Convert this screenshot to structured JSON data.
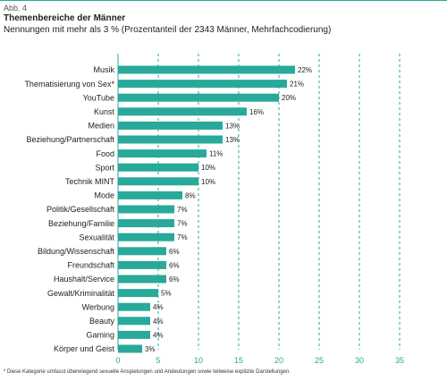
{
  "header": {
    "figure_label": "Abb. 4",
    "title": "Themenbereiche der Männer",
    "subtitle": "Nennungen mit mehr als 3 % (Prozentanteil der 2343 Männer, Mehrfachcodierung)"
  },
  "footnote": "* Diese Kategorie umfasst überwiegend sexuelle Anspielungen und Andeutungen sowie teilweise explizite Darstellungen.",
  "colors": {
    "bar": "#28a99a",
    "grid": "#28a99a",
    "tick_text": "#28a99a",
    "text": "#222222"
  },
  "chart_data": {
    "type": "bar",
    "orientation": "horizontal",
    "categories": [
      "Musik",
      "Thematisierung von Sex*",
      "YouTube",
      "Kunst",
      "Medien",
      "Beziehung/Partnerschaft",
      "Food",
      "Sport",
      "Technik MINT",
      "Mode",
      "Politik/Gesellschaft",
      "Beziehung/Familie",
      "Sexualität",
      "Bildung/Wissenschaft",
      "Freundschaft",
      "Haushalt/Service",
      "Gewalt/Kriminalität",
      "Werbung",
      "Beauty",
      "Gaming",
      "Körper und Geist"
    ],
    "values": [
      22,
      21,
      20,
      16,
      13,
      13,
      11,
      10,
      10,
      8,
      7,
      7,
      7,
      6,
      6,
      6,
      5,
      4,
      4,
      4,
      3
    ],
    "value_labels": [
      "22%",
      "21%",
      "20%",
      "16%",
      "13%",
      "13%",
      "11%",
      "10%",
      "10%",
      "8%",
      "7%",
      "7%",
      "7%",
      "6%",
      "6%",
      "6%",
      "5%",
      "4%",
      "4%",
      "4%",
      "3%"
    ],
    "xlim": [
      0,
      35
    ],
    "xticks": [
      0,
      5,
      10,
      15,
      20,
      25,
      30,
      35
    ],
    "xtick_labels": [
      "0",
      "5",
      "10",
      "15",
      "20",
      "25",
      "30",
      "35"
    ],
    "grid": "vertical dashed"
  }
}
